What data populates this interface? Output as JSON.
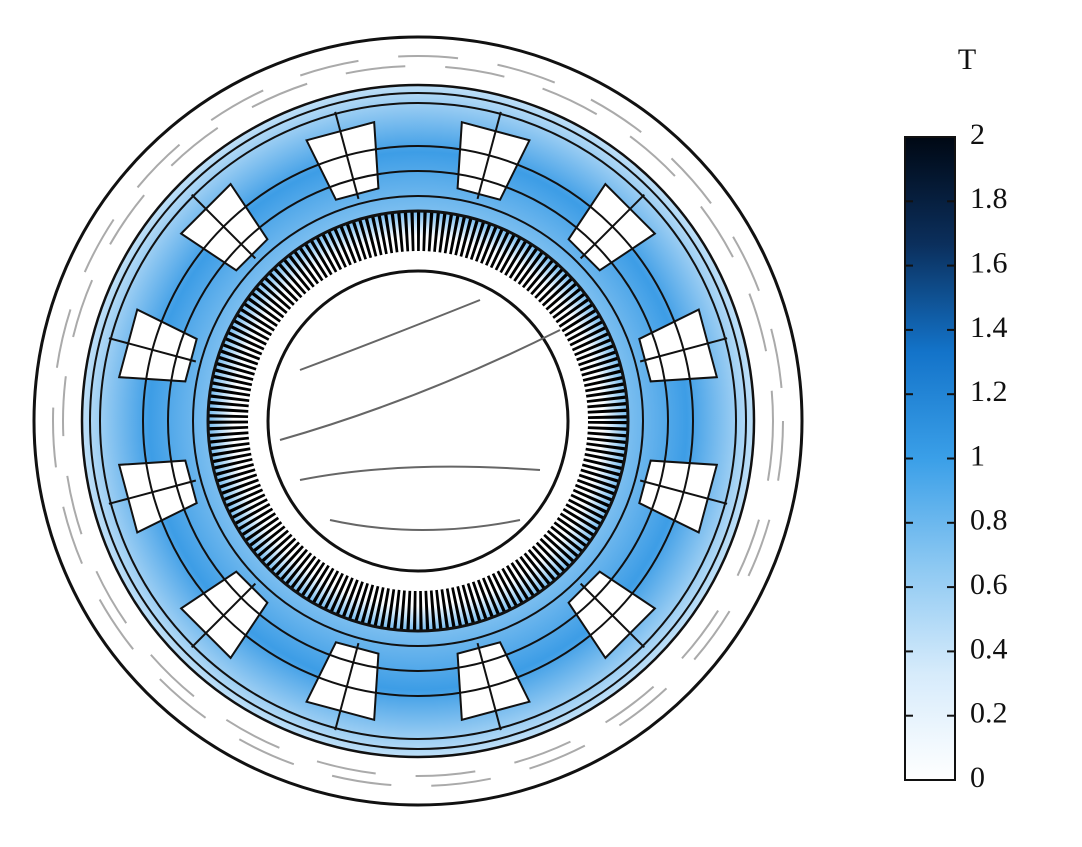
{
  "chart_data": {
    "type": "field-map",
    "colorbar": {
      "label": "T",
      "lim": [
        0,
        2
      ],
      "ticks": [
        0,
        0.2,
        0.4,
        0.6,
        0.8,
        1,
        1.2,
        1.4,
        1.6,
        1.8,
        2
      ],
      "colors": [
        "#ffffff",
        "#d6ebfb",
        "#8cc8f2",
        "#3a9fe8",
        "#1373c9",
        "#0b2f5c",
        "#000814"
      ]
    }
  }
}
